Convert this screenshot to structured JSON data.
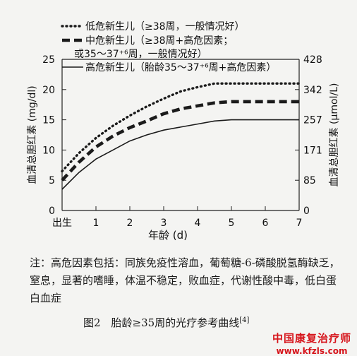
{
  "top_text": "",
  "chart_data": {
    "type": "line",
    "x_ticks": [
      "出生",
      "1",
      "2",
      "3",
      "4",
      "5",
      "6",
      "7"
    ],
    "xlabel": "年龄 (d)",
    "ylabel_left": "血清总胆红素 (mg/dl)",
    "ylabel_right": "血清总胆红素 (μmol/L)",
    "y_left_ticks": [
      0,
      5,
      10,
      15,
      20,
      25
    ],
    "y_right_ticks": [
      0,
      85,
      171,
      257,
      342,
      428
    ],
    "ylim": [
      0,
      25
    ],
    "xlim": [
      0,
      7
    ],
    "legend_position": "top-left",
    "series": [
      {
        "name_lines": [
          "低危新生儿（≥38周，一般情况好）"
        ],
        "style": "dotted",
        "x": [
          0,
          0.5,
          1,
          1.5,
          2,
          2.5,
          3,
          3.5,
          4,
          4.5,
          5,
          6,
          7
        ],
        "y": [
          6.5,
          9.5,
          12,
          14,
          15.7,
          17.2,
          18.5,
          19.7,
          20.4,
          21,
          21,
          21,
          21
        ]
      },
      {
        "name_lines": [
          "中危新生儿（≥38周+高危因素；",
          "或35～37⁺⁶周，一般情况好）"
        ],
        "style": "dashed",
        "x": [
          0,
          0.5,
          1,
          1.5,
          2,
          2.5,
          3,
          3.5,
          4,
          4.5,
          5,
          6,
          7
        ],
        "y": [
          5,
          8,
          10.5,
          12.3,
          13.7,
          14.8,
          16,
          16.8,
          17.3,
          17.8,
          18,
          18,
          18
        ]
      },
      {
        "name_lines": [
          "高危新生儿（胎龄35～37⁺⁶周+高危因素）"
        ],
        "style": "solid",
        "x": [
          0,
          0.5,
          1,
          1.5,
          2,
          2.5,
          3,
          3.5,
          4,
          4.5,
          5,
          6,
          7
        ],
        "y": [
          3.5,
          6.3,
          8.5,
          10,
          11.5,
          12.5,
          13.3,
          13.8,
          14.3,
          14.8,
          15,
          15,
          15
        ]
      }
    ]
  },
  "note": "注：高危因素包括：同族免疫性溶血，葡萄糖-6-磷酸脱氢酶缺乏，窒息，显著的嗜睡，体温不稳定，败血症，代谢性酸中毒，低白蛋白血症",
  "caption_main": "图2　胎龄≥35周的光疗参考曲线",
  "caption_ref": "[4]",
  "watermark": {
    "name": "中国康复治疗师",
    "url": "www.kfzls.com"
  }
}
